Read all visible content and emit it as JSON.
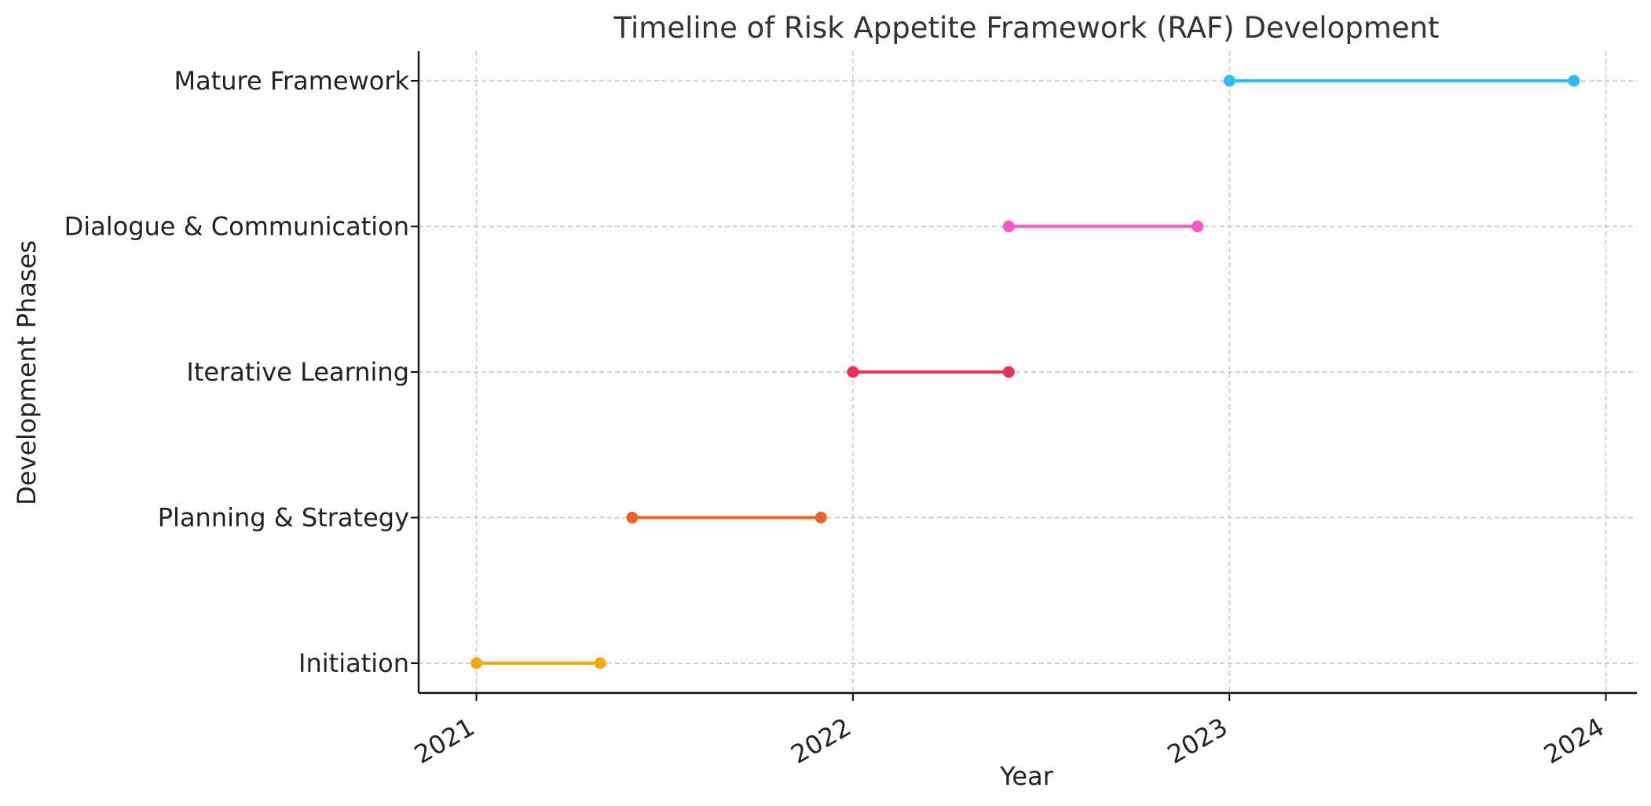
{
  "chart_data": {
    "type": "line",
    "title": "Timeline of Risk Appetite Framework (RAF) Development",
    "xlabel": "Year",
    "ylabel": "Development Phases",
    "x_axis_type": "date",
    "xlim": [
      "2020-11-06",
      "2024-01-31"
    ],
    "xticks": [
      "2021",
      "2022",
      "2023",
      "2024"
    ],
    "xtick_rotation": 30,
    "categories": [
      "Initiation",
      "Planning & Strategy",
      "Iterative Learning",
      "Dialogue & Communication",
      "Mature Framework"
    ],
    "grid": true,
    "series": [
      {
        "category": "Initiation",
        "start": "2021-01-01",
        "end": "2021-05-01",
        "color": "#F5A80C"
      },
      {
        "category": "Planning & Strategy",
        "start": "2021-06-01",
        "end": "2021-12-01",
        "color": "#EE6325"
      },
      {
        "category": "Iterative Learning",
        "start": "2022-01-01",
        "end": "2022-06-01",
        "color": "#EE3055"
      },
      {
        "category": "Dialogue & Communication",
        "start": "2022-06-01",
        "end": "2022-12-01",
        "color": "#FA57C1"
      },
      {
        "category": "Mature Framework",
        "start": "2023-01-01",
        "end": "2023-12-01",
        "color": "#2BBCF2"
      }
    ]
  }
}
